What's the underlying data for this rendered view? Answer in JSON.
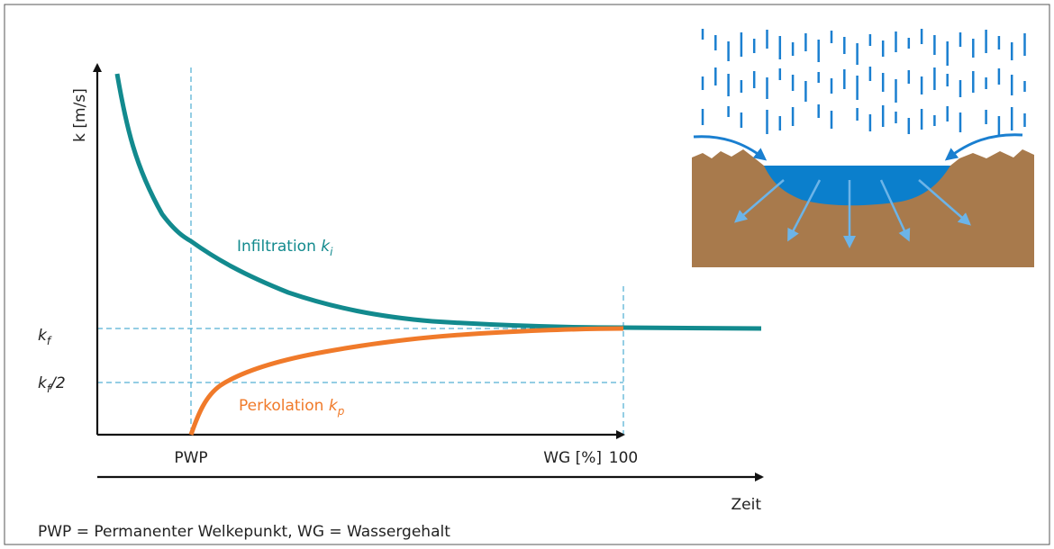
{
  "axes": {
    "y_label": "k [m/s]",
    "x_label": "WG [%]",
    "x_end": "100",
    "x_mark": "PWP",
    "time_label": "Zeit"
  },
  "levels": {
    "kf": {
      "symbol": "k",
      "subscript": "f"
    },
    "kf_half": {
      "symbol": "k",
      "subscript": "f",
      "suffix": "/2"
    }
  },
  "curves": {
    "infiltration": {
      "text": "Infiltration",
      "symbol": "k",
      "subscript": "i"
    },
    "percolation": {
      "text": "Perkolation",
      "symbol": "k",
      "subscript": "p"
    }
  },
  "caption": "PWP = Permanenter Welkepunkt, WG = Wassergehalt"
}
